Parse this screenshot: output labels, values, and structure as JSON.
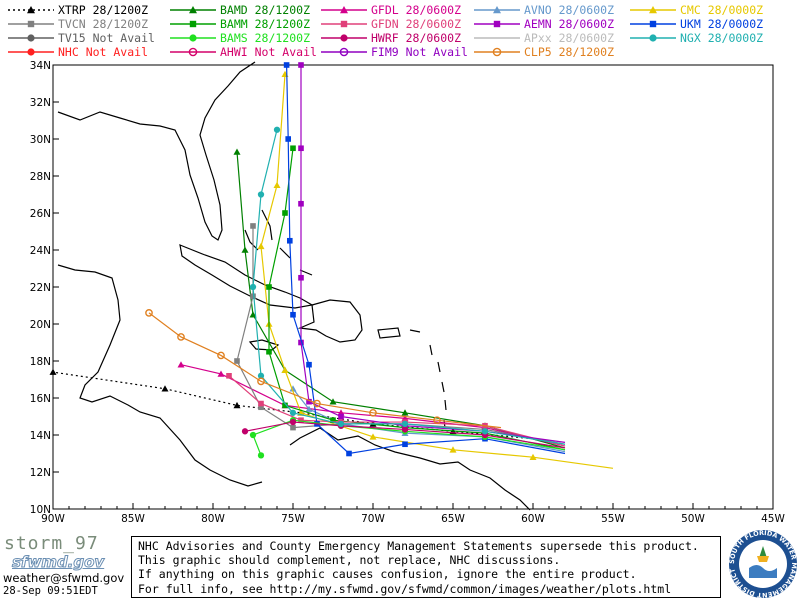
{
  "legend": [
    {
      "label": "XTRP 28/1200Z",
      "color": "#000000",
      "marker": "triangle",
      "dash": true
    },
    {
      "label": "BAMD 28/1200Z",
      "color": "#008000",
      "marker": "triangle"
    },
    {
      "label": "GFDL 28/0600Z",
      "color": "#d4008c",
      "marker": "triangle"
    },
    {
      "label": "AVNO 28/0600Z",
      "color": "#6699cc",
      "marker": "triangle"
    },
    {
      "label": "CMC  28/0000Z",
      "color": "#e6c800",
      "marker": "triangle"
    },
    {
      "label": "TVCN 28/1200Z",
      "color": "#808080",
      "marker": "square"
    },
    {
      "label": "BAMM 28/1200Z",
      "color": "#00a000",
      "marker": "square"
    },
    {
      "label": "GFDN 28/0600Z",
      "color": "#e0407a",
      "marker": "square"
    },
    {
      "label": "AEMN 28/0600Z",
      "color": "#a000c0",
      "marker": "square"
    },
    {
      "label": "UKM  28/0000Z",
      "color": "#0040e0",
      "marker": "square"
    },
    {
      "label": "TV15 Not Avail",
      "color": "#606060",
      "marker": "circle"
    },
    {
      "label": "BAMS 28/1200Z",
      "color": "#20e020",
      "marker": "circle"
    },
    {
      "label": "HWRF 28/0600Z",
      "color": "#c0006a",
      "marker": "circle"
    },
    {
      "label": "APxx 28/0600Z",
      "color": "#bbbbbb",
      "marker": "none"
    },
    {
      "label": "NGX  28/0000Z",
      "color": "#20b0b0",
      "marker": "circle"
    },
    {
      "label": "NHC  Not Avail",
      "color": "#ff2020",
      "marker": "circle"
    },
    {
      "label": "AHWI  Not Avail",
      "color": "#d4006a",
      "marker": "ring"
    },
    {
      "label": "FIM9  Not Avail",
      "color": "#9000c0",
      "marker": "ring"
    },
    {
      "label": "CLP5 28/1200Z",
      "color": "#e08020",
      "marker": "ring"
    }
  ],
  "map": {
    "lon_range": [
      -90,
      -45
    ],
    "lat_range": [
      10,
      34
    ],
    "lon_ticks": [
      "90W",
      "85W",
      "80W",
      "75W",
      "70W",
      "65W",
      "60W",
      "55W",
      "50W",
      "45W"
    ],
    "lat_ticks": [
      "10N",
      "12N",
      "14N",
      "16N",
      "18N",
      "20N",
      "22N",
      "24N",
      "26N",
      "28N",
      "30N",
      "32N",
      "34N"
    ]
  },
  "tracks": [
    {
      "name": "XTRP",
      "color": "#000000",
      "dash": true,
      "marker": "triangle",
      "points": [
        [
          -60,
          13.8
        ],
        [
          -65,
          14.2
        ],
        [
          -70,
          14.6
        ],
        [
          -74.5,
          15.2
        ],
        [
          -78.5,
          15.6
        ],
        [
          -83,
          16.5
        ],
        [
          -90,
          17.4
        ]
      ]
    },
    {
      "name": "BAMD",
      "color": "#008000",
      "marker": "triangle",
      "points": [
        [
          -58,
          13.3
        ],
        [
          -63,
          14.5
        ],
        [
          -68,
          15.2
        ],
        [
          -72.5,
          15.8
        ],
        [
          -75.5,
          17.5
        ],
        [
          -77.5,
          20.5
        ],
        [
          -78,
          24
        ],
        [
          -78.5,
          29.3
        ]
      ]
    },
    {
      "name": "GFDL",
      "color": "#d4008c",
      "marker": "triangle",
      "points": [
        [
          -58,
          13.4
        ],
        [
          -63,
          14.4
        ],
        [
          -68,
          14.9
        ],
        [
          -72,
          15.2
        ],
        [
          -75.5,
          15.6
        ],
        [
          -79.5,
          17.3
        ],
        [
          -82,
          17.8
        ]
      ]
    },
    {
      "name": "AVNO",
      "color": "#6699cc",
      "marker": "triangle",
      "points": [
        [
          -58,
          13.1
        ],
        [
          -63,
          13.9
        ],
        [
          -68,
          14.1
        ],
        [
          -72,
          14.6
        ],
        [
          -74,
          15.4
        ],
        [
          -75,
          16.5
        ]
      ]
    },
    {
      "name": "CMC",
      "color": "#e6c800",
      "marker": "triangle",
      "points": [
        [
          -55,
          12.2
        ],
        [
          -60,
          12.8
        ],
        [
          -65,
          13.2
        ],
        [
          -70,
          13.9
        ],
        [
          -74.5,
          15.2
        ],
        [
          -75.5,
          17.5
        ],
        [
          -76.5,
          20
        ],
        [
          -77,
          24.2
        ],
        [
          -76,
          27.5
        ],
        [
          -75.5,
          33.5
        ]
      ]
    },
    {
      "name": "TVCN",
      "color": "#808080",
      "marker": "square",
      "points": [
        [
          -58,
          13.5
        ],
        [
          -63,
          14.3
        ],
        [
          -68,
          14.6
        ],
        [
          -72,
          14.6
        ],
        [
          -75,
          14.4
        ],
        [
          -77,
          15.5
        ],
        [
          -78.5,
          18
        ],
        [
          -77.5,
          21.5
        ],
        [
          -77.5,
          25.3
        ]
      ]
    },
    {
      "name": "BAMM",
      "color": "#00a000",
      "marker": "square",
      "points": [
        [
          -58,
          13.2
        ],
        [
          -63,
          14.1
        ],
        [
          -68,
          14.4
        ],
        [
          -72.5,
          14.8
        ],
        [
          -75.5,
          15.6
        ],
        [
          -76.5,
          18.5
        ],
        [
          -76.5,
          22
        ],
        [
          -75.5,
          26
        ],
        [
          -75,
          29.5
        ]
      ]
    },
    {
      "name": "GFDN",
      "color": "#e0407a",
      "marker": "square",
      "points": [
        [
          -58,
          13.4
        ],
        [
          -63,
          14.5
        ],
        [
          -68,
          14.7
        ],
        [
          -72,
          14.7
        ],
        [
          -74.5,
          14.8
        ],
        [
          -77,
          15.7
        ],
        [
          -79,
          17.2
        ]
      ]
    },
    {
      "name": "AEMN",
      "color": "#a000c0",
      "marker": "square",
      "points": [
        [
          -58,
          13.6
        ],
        [
          -63,
          14.2
        ],
        [
          -68,
          14.5
        ],
        [
          -72,
          15
        ],
        [
          -74,
          15.8
        ],
        [
          -74.5,
          19
        ],
        [
          -74.5,
          22.5
        ],
        [
          -74.5,
          26.5
        ],
        [
          -74.5,
          29.5
        ],
        [
          -74.5,
          34
        ]
      ]
    },
    {
      "name": "UKM",
      "color": "#0040e0",
      "marker": "square",
      "points": [
        [
          -58,
          13
        ],
        [
          -63,
          13.8
        ],
        [
          -68,
          13.5
        ],
        [
          -71.5,
          13
        ],
        [
          -73.5,
          14.6
        ],
        [
          -74,
          17.8
        ],
        [
          -75,
          20.5
        ],
        [
          -75.2,
          24.5
        ],
        [
          -75.3,
          30
        ],
        [
          -75.4,
          34
        ]
      ]
    },
    {
      "name": "BAMS",
      "color": "#20e020",
      "marker": "circle",
      "points": [
        [
          -58,
          13.2
        ],
        [
          -63,
          13.9
        ],
        [
          -68,
          14.2
        ],
        [
          -72,
          14.5
        ],
        [
          -75,
          14.8
        ],
        [
          -77.5,
          14
        ],
        [
          -77,
          12.9
        ]
      ]
    },
    {
      "name": "HWRF",
      "color": "#c0006a",
      "marker": "circle",
      "points": [
        [
          -58,
          13.3
        ],
        [
          -63,
          14.0
        ],
        [
          -68,
          14.3
        ],
        [
          -72,
          14.5
        ],
        [
          -75,
          14.7
        ],
        [
          -78,
          14.2
        ]
      ]
    },
    {
      "name": "NGX",
      "color": "#20b0b0",
      "marker": "circle",
      "points": [
        [
          -58,
          13.5
        ],
        [
          -63,
          14.2
        ],
        [
          -68,
          14.6
        ],
        [
          -72,
          14.6
        ],
        [
          -75,
          15.2
        ],
        [
          -77,
          17.2
        ],
        [
          -77.5,
          22
        ],
        [
          -77,
          27
        ],
        [
          -76,
          30.5
        ]
      ]
    },
    {
      "name": "CLP5",
      "color": "#e08020",
      "marker": "ring",
      "points": [
        [
          -62,
          14.4
        ],
        [
          -66,
          14.8
        ],
        [
          -70,
          15.2
        ],
        [
          -73.5,
          15.7
        ],
        [
          -77,
          16.9
        ],
        [
          -79.5,
          18.3
        ],
        [
          -82,
          19.3
        ],
        [
          -84,
          20.6
        ]
      ]
    }
  ],
  "footer": {
    "storm_name": "storm_97",
    "logo_text": "sfwmd.gov",
    "contact": "weather@sfwmd.gov",
    "timestamp": "28-Sep 09:51EDT",
    "disclaimer": [
      "NHC Advisories and County Emergency Management Statements supersede this product.",
      "This graphic should complement, not replace, NHC discussions.",
      "If anything on this graphic causes confusion, ignore the entire product.",
      "For full info, see  http://my.sfwmd.gov/sfwmd/common/images/weather/plots.html"
    ],
    "seal_text": "SOUTH FLORIDA WATER MANAGEMENT DISTRICT"
  }
}
